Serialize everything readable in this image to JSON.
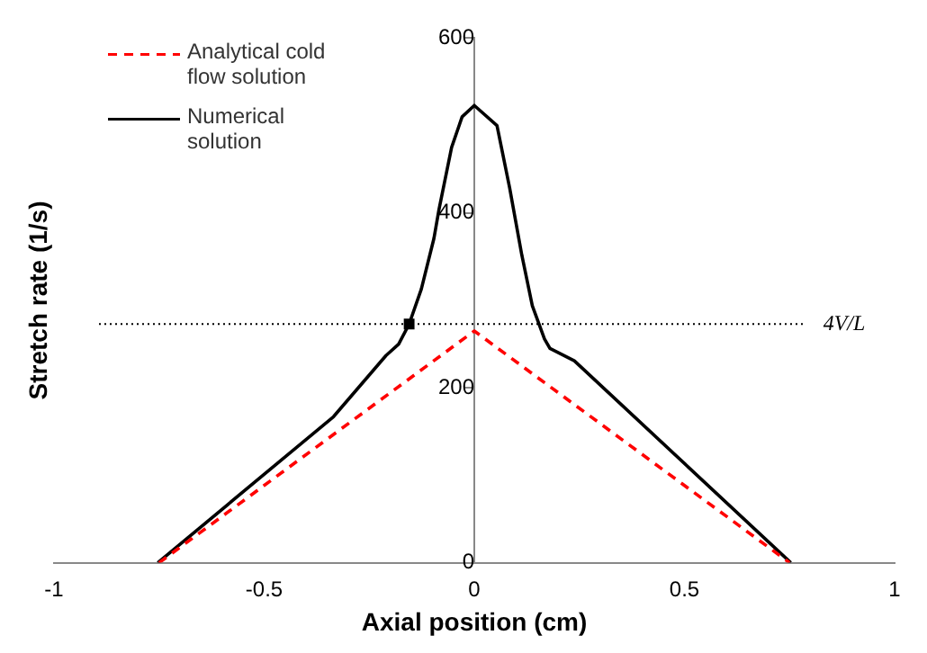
{
  "chart_data": {
    "type": "line",
    "xlabel": "Axial position (cm)",
    "ylabel": "Stretch rate (1/s)",
    "xlim": [
      -1,
      1
    ],
    "xticks": [
      -1,
      -0.5,
      0,
      0.5,
      1
    ],
    "ylim": [
      0,
      600
    ],
    "yticks": [
      0,
      200,
      400,
      600
    ],
    "grid": false,
    "legend": "top left",
    "marker": "none",
    "series": [
      {
        "name": "Analytical cold flow solution",
        "color": "#ff0000",
        "line_style": "dashed",
        "x": [
          -0.75,
          0,
          0.75
        ],
        "values": [
          0,
          265,
          0
        ]
      },
      {
        "name": "Numerical solution",
        "color": "#000000",
        "line_style": "solid",
        "x": [
          -0.753,
          -0.335,
          -0.21,
          -0.18,
          -0.155,
          -0.126,
          -0.096,
          -0.084,
          -0.054,
          -0.029,
          0,
          0.054,
          0.084,
          0.113,
          0.138,
          0.167,
          0.18,
          0.238,
          0.753
        ],
        "values": [
          0,
          167,
          237,
          250,
          273,
          313,
          371,
          404,
          475,
          510,
          523,
          500,
          429,
          352,
          294,
          256,
          245,
          231,
          0
        ]
      },
      {
        "type": "scatter",
        "color": "#000000",
        "marker": "square",
        "x": [
          -0.155
        ],
        "values": [
          273
        ]
      }
    ],
    "ref_lines": [
      {
        "axis": "y",
        "value": 273,
        "label": "4V/L",
        "color": "#000000",
        "line_style": "dotted"
      }
    ]
  }
}
